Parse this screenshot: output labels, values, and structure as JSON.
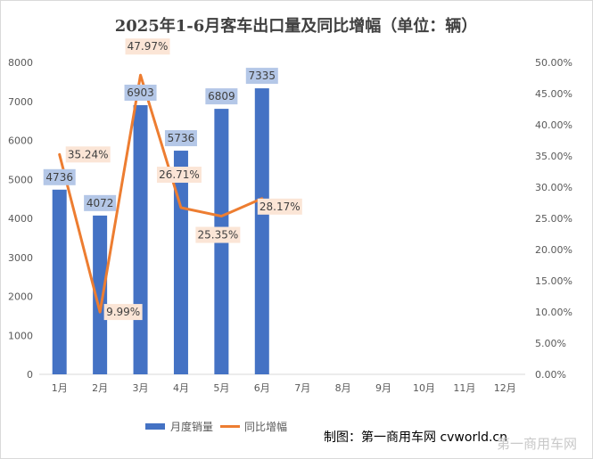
{
  "chart_data": {
    "type": "bar+line",
    "title": "2025年1-6月客车出口量及同比增幅（单位：辆）",
    "categories": [
      "1月",
      "2月",
      "3月",
      "4月",
      "5月",
      "6月",
      "7月",
      "8月",
      "9月",
      "10月",
      "11月",
      "12月"
    ],
    "series": [
      {
        "name": "月度销量",
        "type": "bar",
        "axis": "left",
        "values": [
          4736,
          4072,
          6903,
          5736,
          6809,
          7335,
          null,
          null,
          null,
          null,
          null,
          null
        ],
        "labels": [
          "4736",
          "4072",
          "6903",
          "5736",
          "6809",
          "7335"
        ]
      },
      {
        "name": "同比增幅",
        "type": "line",
        "axis": "right",
        "values": [
          35.24,
          9.99,
          47.97,
          26.71,
          25.35,
          28.17,
          null,
          null,
          null,
          null,
          null,
          null
        ],
        "labels": [
          "35.24%",
          "9.99%",
          "47.97%",
          "26.71%",
          "25.35%",
          "28.17%"
        ]
      }
    ],
    "y_left": {
      "min": 0,
      "max": 8000,
      "ticks": [
        "0",
        "1000",
        "2000",
        "3000",
        "4000",
        "5000",
        "6000",
        "7000",
        "8000"
      ]
    },
    "y_right": {
      "min": 0,
      "max": 50,
      "ticks": [
        "0.00%",
        "5.00%",
        "10.00%",
        "15.00%",
        "20.00%",
        "25.00%",
        "30.00%",
        "35.00%",
        "40.00%",
        "45.00%",
        "50.00%"
      ]
    },
    "grid": false,
    "legend": "bottom",
    "colors": {
      "bar": "#4472c4",
      "line": "#ed7d31",
      "bar_label_bg": "#b4c7e7",
      "line_label_bg": "#fbe5d6",
      "axis": "#d9d9d9"
    }
  },
  "credit": "制图：第一商用车网 cvworld.cn",
  "watermark": "第一商用车网"
}
